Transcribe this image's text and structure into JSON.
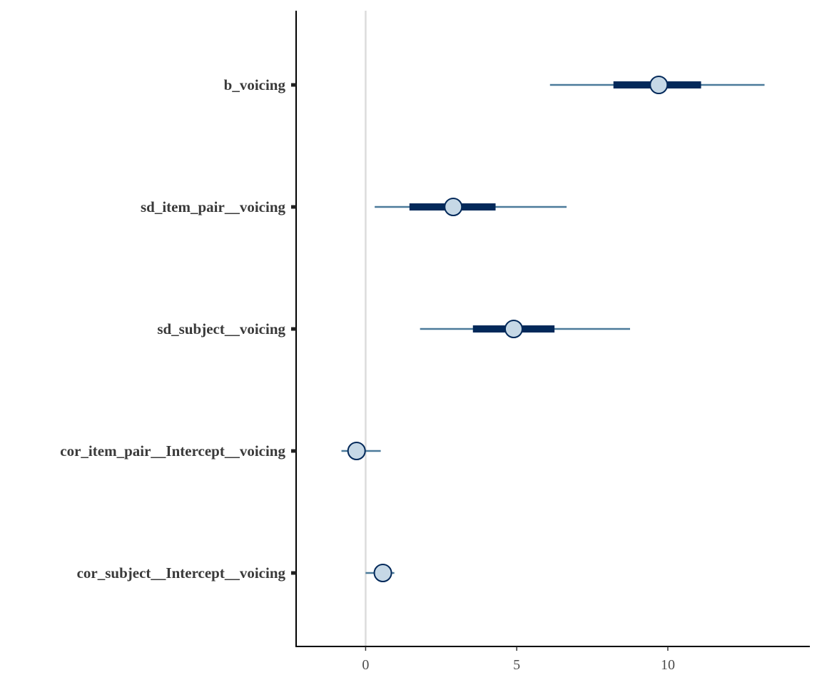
{
  "chart_data": {
    "type": "interval",
    "title": "",
    "xlabel": "",
    "ylabel": "",
    "xlim": [
      -2.3,
      14.7
    ],
    "x_ticks": [
      0,
      5,
      10
    ],
    "x_tick_labels": [
      "0",
      "5",
      "10"
    ],
    "reference_line": 0,
    "grid": false,
    "legend": "none",
    "parameters": [
      {
        "label": "b_voicing",
        "point": 9.7,
        "inner": [
          8.2,
          11.1
        ],
        "outer": [
          6.1,
          13.2
        ]
      },
      {
        "label": "sd_item_pair__voicing",
        "point": 2.9,
        "inner": [
          1.45,
          4.3
        ],
        "outer": [
          0.3,
          6.65
        ]
      },
      {
        "label": "sd_subject__voicing",
        "point": 4.9,
        "inner": [
          3.55,
          6.25
        ],
        "outer": [
          1.8,
          8.75
        ]
      },
      {
        "label": "cor_item_pair__Intercept__voicing",
        "point": -0.3,
        "inner": [
          -0.4,
          -0.15
        ],
        "outer": [
          -0.8,
          0.5
        ]
      },
      {
        "label": "cor_subject__Intercept__voicing",
        "point": 0.57,
        "inner": [
          0.4,
          0.72
        ],
        "outer": [
          0.0,
          0.95
        ]
      }
    ],
    "colors": {
      "outer_line": "#4b7a9a",
      "inner_line": "#03295a",
      "point_fill": "#c6d8e6",
      "point_stroke": "#03295a",
      "reference_line": "#dcdcdc",
      "axis": "#000000"
    }
  }
}
